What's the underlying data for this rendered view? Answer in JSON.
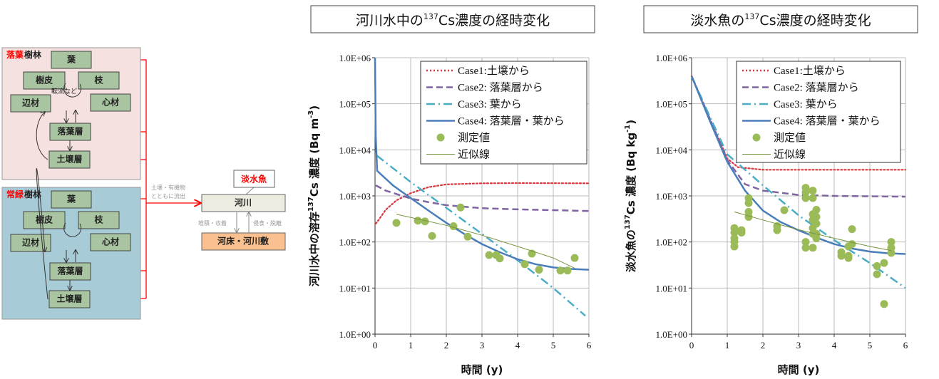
{
  "diagram": {
    "deciduous": {
      "title_red": "落葉",
      "title_black": "樹林"
    },
    "evergreen": {
      "title_red": "常緑",
      "title_black": "樹林"
    },
    "boxes": {
      "leaf": "葉",
      "bark": "樹皮",
      "branch": "枝",
      "sapwood": "辺材",
      "heartwood": "心材",
      "litter": "落葉層",
      "soil": "土壌層"
    },
    "translocation": "転流など",
    "runoff_1": "土壌・有機物",
    "runoff_2": "とともに流出",
    "fish": "淡水魚",
    "river": "河川",
    "riverbed": "河床・河川敷",
    "deposition": "堆積・収着",
    "erosion": "侵食・脱離",
    "colors": {
      "deciduous_bg": "#f6e1e1",
      "evergreen_bg": "#a8ccd7",
      "box": "#a9c4a0",
      "line": "#ff0000",
      "riverbed": "#fac090",
      "river": "#eeece1"
    }
  },
  "chart_data": [
    {
      "type": "line",
      "title_pre": "河川水中の",
      "title_sup": "137",
      "title_post": "Cs濃度の経時変化",
      "ylabel_pre": "河川水中の溶存",
      "ylabel_sup": "137",
      "ylabel_post": "Cs 濃度 (Bq m",
      "ylabel_sup2": "-3",
      "ylabel_end": ")",
      "xlabel": "時間 (y)",
      "xlim": [
        0,
        6
      ],
      "ylim": [
        1,
        1000000
      ],
      "yscale": "log",
      "grid": true,
      "legend": "top-right",
      "xticks": [
        "0",
        "1",
        "2",
        "3",
        "4",
        "5",
        "6"
      ],
      "yticks": [
        "1.0E+00",
        "1.0E+01",
        "1.0E+02",
        "1.0E+03",
        "1.0E+04",
        "1.0E+05",
        "1.0E+06"
      ],
      "series": [
        {
          "name": "Case1:土壌から",
          "style": "dotted",
          "color": "#d9363e",
          "points": [
            [
              0.02,
              250
            ],
            [
              0.1,
              300
            ],
            [
              0.3,
              500
            ],
            [
              0.6,
              800
            ],
            [
              1,
              1150
            ],
            [
              1.5,
              1550
            ],
            [
              2,
              1780
            ],
            [
              3,
              1880
            ],
            [
              4,
              1900
            ],
            [
              6,
              1880
            ]
          ]
        },
        {
          "name": "Case2: 落葉層から",
          "style": "dashed",
          "color": "#8064a2",
          "points": [
            [
              0.02,
              1700
            ],
            [
              0.3,
              1300
            ],
            [
              1,
              880
            ],
            [
              1.5,
              730
            ],
            [
              2,
              630
            ],
            [
              3,
              540
            ],
            [
              4,
              510
            ],
            [
              5,
              490
            ],
            [
              6,
              470
            ]
          ]
        },
        {
          "name": "Case3: 葉から",
          "style": "dashdot",
          "color": "#4bacc6",
          "points": [
            [
              0.05,
              7500
            ],
            [
              1,
              2000
            ],
            [
              2,
              550
            ],
            [
              3,
              150
            ],
            [
              4,
              40
            ],
            [
              5,
              10
            ],
            [
              5.9,
              2.5
            ]
          ]
        },
        {
          "name": "Case4: 落葉層・葉から",
          "style": "solid",
          "color": "#4a7ebb",
          "points": [
            [
              0.0,
              1000000
            ],
            [
              0.02,
              20000
            ],
            [
              0.06,
              3500
            ],
            [
              0.5,
              1700
            ],
            [
              1,
              900
            ],
            [
              1.5,
              480
            ],
            [
              2,
              260
            ],
            [
              2.5,
              150
            ],
            [
              3,
              90
            ],
            [
              3.5,
              60
            ],
            [
              4,
              42
            ],
            [
              4.5,
              33
            ],
            [
              5,
              28
            ],
            [
              5.5,
              26
            ],
            [
              6,
              25
            ]
          ]
        },
        {
          "name": "測定値",
          "style": "marker",
          "color": "#9bbb59",
          "points": [
            [
              0.6,
              260
            ],
            [
              1.2,
              290
            ],
            [
              1.4,
              280
            ],
            [
              1.6,
              135
            ],
            [
              2.2,
              220
            ],
            [
              2.4,
              560
            ],
            [
              2.6,
              130
            ],
            [
              3.2,
              52
            ],
            [
              3.4,
              52
            ],
            [
              3.5,
              44
            ],
            [
              4.2,
              33
            ],
            [
              4.4,
              56
            ],
            [
              4.6,
              25
            ],
            [
              5.2,
              24
            ],
            [
              5.4,
              24
            ],
            [
              5.6,
              45
            ]
          ]
        },
        {
          "name": "近似線",
          "style": "thin",
          "color": "#77933c",
          "points": [
            [
              0.6,
              400
            ],
            [
              2,
              230
            ],
            [
              3,
              140
            ],
            [
              4,
              80
            ],
            [
              5,
              45
            ],
            [
              5.6,
              27
            ]
          ]
        }
      ]
    },
    {
      "type": "line",
      "title_pre": "淡水魚の",
      "title_sup": "137",
      "title_post": "Cs濃度の経時変化",
      "ylabel_pre": "淡水魚の",
      "ylabel_sup": "137",
      "ylabel_post": "Cs 濃度 (Bq kg",
      "ylabel_sup2": "-1",
      "ylabel_end": ")",
      "xlabel": "時間 (y)",
      "xlim": [
        0,
        6
      ],
      "ylim": [
        1,
        1000000
      ],
      "yscale": "log",
      "grid": true,
      "legend": "top-right",
      "xticks": [
        "0",
        "1",
        "2",
        "3",
        "4",
        "5",
        "6"
      ],
      "yticks": [
        "1.0E+00",
        "1.0E+01",
        "1.0E+02",
        "1.0E+03",
        "1.0E+04",
        "1.0E+05",
        "1.0E+06"
      ],
      "series": [
        {
          "name": "Case1:土壌から",
          "style": "dotted",
          "color": "#d9363e",
          "points": [
            [
              0,
              400000
            ],
            [
              0.5,
              50000
            ],
            [
              1,
              6500
            ],
            [
              1.3,
              4200
            ],
            [
              2,
              3700
            ],
            [
              3,
              3700
            ],
            [
              6,
              3700
            ]
          ]
        },
        {
          "name": "Case2: 落葉層から",
          "style": "dashed",
          "color": "#8064a2",
          "points": [
            [
              0,
              400000
            ],
            [
              0.5,
              50000
            ],
            [
              1,
              6000
            ],
            [
              1.5,
              1800
            ],
            [
              2,
              1300
            ],
            [
              3,
              1050
            ],
            [
              4,
              1000
            ],
            [
              6,
              960
            ]
          ]
        },
        {
          "name": "Case3: 葉から",
          "style": "dashdot",
          "color": "#4bacc6",
          "points": [
            [
              0,
              400000
            ],
            [
              0.5,
              55000
            ],
            [
              1,
              8000
            ],
            [
              2,
              1700
            ],
            [
              3,
              380
            ],
            [
              4,
              110
            ],
            [
              5,
              35
            ],
            [
              6,
              10
            ]
          ]
        },
        {
          "name": "Case4: 落葉層・葉から",
          "style": "solid",
          "color": "#4a7ebb",
          "points": [
            [
              0,
              400000
            ],
            [
              0.5,
              45000
            ],
            [
              1,
              5500
            ],
            [
              1.5,
              1300
            ],
            [
              2,
              480
            ],
            [
              2.5,
              270
            ],
            [
              3,
              180
            ],
            [
              3.5,
              125
            ],
            [
              4,
              90
            ],
            [
              4.5,
              72
            ],
            [
              5,
              62
            ],
            [
              5.5,
              57
            ],
            [
              6,
              55
            ]
          ]
        },
        {
          "name": "測定値",
          "style": "marker",
          "color": "#9bbb59",
          "points": [
            [
              1.2,
              200
            ],
            [
              1.2,
              160
            ],
            [
              1.2,
              120
            ],
            [
              1.2,
              100
            ],
            [
              1.2,
              80
            ],
            [
              1.4,
              180
            ],
            [
              1.4,
              160
            ],
            [
              1.6,
              900
            ],
            [
              1.6,
              700
            ],
            [
              1.6,
              450
            ],
            [
              1.6,
              350
            ],
            [
              2.4,
              220
            ],
            [
              2.4,
              180
            ],
            [
              2.6,
              490
            ],
            [
              3.2,
              1500
            ],
            [
              3.2,
              1200
            ],
            [
              3.2,
              900
            ],
            [
              3.2,
              100
            ],
            [
              3.2,
              75
            ],
            [
              3.4,
              1300
            ],
            [
              3.4,
              900
            ],
            [
              3.4,
              75
            ],
            [
              3.4,
              400
            ],
            [
              3.4,
              300
            ],
            [
              3.4,
              200
            ],
            [
              3.4,
              150
            ],
            [
              3.5,
              500
            ],
            [
              3.5,
              350
            ],
            [
              3.5,
              250
            ],
            [
              3.5,
              150
            ],
            [
              3.5,
              120
            ],
            [
              4.2,
              60
            ],
            [
              4.2,
              50
            ],
            [
              4.4,
              80
            ],
            [
              4.4,
              50
            ],
            [
              4.4,
              45
            ],
            [
              4.5,
              190
            ],
            [
              4.5,
              90
            ],
            [
              5.2,
              30
            ],
            [
              5.2,
              20
            ],
            [
              5.4,
              35
            ],
            [
              5.4,
              4.5
            ],
            [
              5.6,
              100
            ],
            [
              5.6,
              75
            ],
            [
              5.6,
              58
            ]
          ]
        },
        {
          "name": "近似線",
          "style": "thin",
          "color": "#77933c",
          "points": [
            [
              1.2,
              450
            ],
            [
              2,
              300
            ],
            [
              3,
              185
            ],
            [
              4,
              120
            ],
            [
              5,
              80
            ],
            [
              5.6,
              65
            ]
          ]
        }
      ]
    }
  ]
}
